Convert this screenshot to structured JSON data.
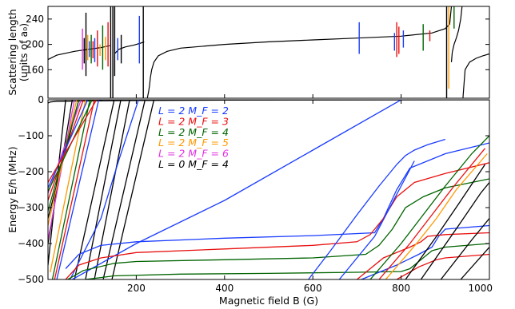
{
  "chart_data": [
    {
      "id": "top",
      "type": "line",
      "ylabel_line1": "Scattering length",
      "ylabel_line2": "(units of a₀)",
      "xlim": [
        0,
        1000
      ],
      "ylim": [
        115,
        260
      ],
      "yticks": [
        160,
        200,
        240
      ],
      "ytick_labels": [
        "160",
        "200",
        "240"
      ],
      "grid": false,
      "background_curve": {
        "color": "#000000",
        "branches": [
          {
            "x": [
              0,
              20,
              60,
              90,
              120,
              140
            ],
            "y": [
              176,
              183,
              189,
              192,
              195,
              198
            ]
          },
          {
            "x": [
              152,
              160,
              175,
              195,
              210,
              218
            ],
            "y": [
              186,
              192,
              196,
              199,
              202,
              204
            ]
          },
          {
            "x": [
              225,
              228,
              230,
              232,
              235,
              240,
              250,
              270,
              300,
              400,
              500,
              600,
              700,
              800,
              870,
              900,
              910,
              912,
              914
            ],
            "y": [
              115,
              126,
              135,
              148,
              160,
              172,
              182,
              189,
              194,
              200,
              204,
              207,
              210,
              213,
              218,
              225,
              232,
              246,
              260
            ]
          },
          {
            "x": [
              914,
              916,
              920,
              925,
              930,
              935,
              938
            ],
            "y": [
              172,
              188,
              200,
              210,
              222,
              240,
              260
            ]
          },
          {
            "x": [
              940,
              945,
              955,
              970,
              985,
              1000
            ],
            "y": [
              115,
              160,
              172,
              178,
              182,
              185
            ]
          }
        ]
      },
      "resonances": [
        {
          "x": 78,
          "y1": 160,
          "y2": 225,
          "color": "#e033e0"
        },
        {
          "x": 82,
          "y1": 170,
          "y2": 210,
          "color": "#000000"
        },
        {
          "x": 86,
          "y1": 150,
          "y2": 250,
          "color": "#000000"
        },
        {
          "x": 90,
          "y1": 175,
          "y2": 215,
          "color": "#ff9900"
        },
        {
          "x": 94,
          "y1": 180,
          "y2": 205,
          "color": "#1a3cff"
        },
        {
          "x": 98,
          "y1": 170,
          "y2": 215,
          "color": "#006400"
        },
        {
          "x": 102,
          "y1": 178,
          "y2": 205,
          "color": "#e81010"
        },
        {
          "x": 106,
          "y1": 172,
          "y2": 210,
          "color": "#1a3cff"
        },
        {
          "x": 112,
          "y1": 165,
          "y2": 222,
          "color": "#e81010"
        },
        {
          "x": 118,
          "y1": 182,
          "y2": 200,
          "color": "#ff9900"
        },
        {
          "x": 124,
          "y1": 160,
          "y2": 230,
          "color": "#006400"
        },
        {
          "x": 130,
          "y1": 175,
          "y2": 212,
          "color": "#ff9900"
        },
        {
          "x": 136,
          "y1": 165,
          "y2": 235,
          "color": "#e81010"
        },
        {
          "x": 142,
          "y1": 115,
          "y2": 260,
          "color": "#000000"
        },
        {
          "x": 147,
          "y1": 115,
          "y2": 260,
          "color": "#000000"
        },
        {
          "x": 151,
          "y1": 150,
          "y2": 260,
          "color": "#000000"
        },
        {
          "x": 158,
          "y1": 175,
          "y2": 210,
          "color": "#1a3cff"
        },
        {
          "x": 166,
          "y1": 170,
          "y2": 215,
          "color": "#000000"
        },
        {
          "x": 207,
          "y1": 170,
          "y2": 245,
          "color": "#1a3cff"
        },
        {
          "x": 216,
          "y1": 115,
          "y2": 260,
          "color": "#000000"
        },
        {
          "x": 705,
          "y1": 185,
          "y2": 235,
          "color": "#1a3cff"
        },
        {
          "x": 785,
          "y1": 190,
          "y2": 218,
          "color": "#1a3cff"
        },
        {
          "x": 790,
          "y1": 180,
          "y2": 235,
          "color": "#e81010"
        },
        {
          "x": 795,
          "y1": 185,
          "y2": 228,
          "color": "#e81010"
        },
        {
          "x": 805,
          "y1": 195,
          "y2": 222,
          "color": "#1a3cff"
        },
        {
          "x": 850,
          "y1": 190,
          "y2": 232,
          "color": "#006400"
        },
        {
          "x": 865,
          "y1": 205,
          "y2": 222,
          "color": "#e81010"
        },
        {
          "x": 903,
          "y1": 115,
          "y2": 260,
          "color": "#000000"
        },
        {
          "x": 908,
          "y1": 130,
          "y2": 260,
          "color": "#ff9900"
        },
        {
          "x": 920,
          "y1": 225,
          "y2": 260,
          "color": "#006400"
        }
      ]
    },
    {
      "id": "bottom",
      "type": "line",
      "xlabel": "Magnetic field B (G)",
      "ylabel": "Energy E/h (MHz)",
      "xlim": [
        0,
        1000
      ],
      "ylim": [
        -500,
        0
      ],
      "xticks": [
        200,
        400,
        600,
        800,
        1000
      ],
      "xtick_labels": [
        "200",
        "400",
        "600",
        "800",
        "1000"
      ],
      "yticks": [
        -500,
        -400,
        -300,
        -200,
        -100,
        0
      ],
      "ytick_labels": [
        "−500",
        "−400",
        "−300",
        "−200",
        "−100",
        "0"
      ],
      "grid": false,
      "legend": {
        "placement": "upper-center",
        "entries": [
          {
            "label": "L = 2 M_F = 2",
            "color": "#1a3cff"
          },
          {
            "label": "L = 2 M_F = 3",
            "color": "#e81010"
          },
          {
            "label": "L = 2 M_F = 4",
            "color": "#006400"
          },
          {
            "label": "L = 2 M_F = 5",
            "color": "#ff9900"
          },
          {
            "label": "L = 2 M_F = 6",
            "color": "#e033e0"
          },
          {
            "label": "L = 0 M_F = 4",
            "color": "#000000"
          }
        ]
      },
      "series": [
        {
          "color": "#000000",
          "x": [
            0,
            5,
            20,
            100,
            200,
            400,
            600,
            800,
            1000
          ],
          "y": [
            -9,
            -6,
            -4,
            -3,
            -2,
            -1,
            -0.5,
            -0.2,
            0
          ]
        },
        {
          "color": "#000000",
          "x": [
            0,
            40
          ],
          "y": [
            -460,
            0
          ]
        },
        {
          "color": "#000000",
          "x": [
            0,
            55
          ],
          "y": [
            -400,
            0
          ]
        },
        {
          "color": "#000000",
          "x": [
            0,
            70
          ],
          "y": [
            -330,
            0
          ]
        },
        {
          "color": "#e033e0",
          "x": [
            0,
            60
          ],
          "y": [
            -390,
            0
          ]
        },
        {
          "color": "#e033e0",
          "x": [
            0,
            75
          ],
          "y": [
            -260,
            0
          ]
        },
        {
          "color": "#ff9900",
          "x": [
            0,
            65
          ],
          "y": [
            -350,
            0
          ]
        },
        {
          "color": "#ff9900",
          "x": [
            5,
            85
          ],
          "y": [
            -480,
            0
          ]
        },
        {
          "color": "#006400",
          "x": [
            0,
            70
          ],
          "y": [
            -310,
            0
          ]
        },
        {
          "color": "#006400",
          "x": [
            10,
            95
          ],
          "y": [
            -500,
            0
          ]
        },
        {
          "color": "#e81010",
          "x": [
            0,
            80
          ],
          "y": [
            -280,
            0
          ]
        },
        {
          "color": "#e81010",
          "x": [
            15,
            105
          ],
          "y": [
            -500,
            0
          ]
        },
        {
          "color": "#1a3cff",
          "x": [
            0,
            90
          ],
          "y": [
            -245,
            0
          ]
        },
        {
          "color": "#1a3cff",
          "x": [
            20,
            115
          ],
          "y": [
            -500,
            0
          ]
        },
        {
          "color": "#006400",
          "x": [
            0,
            100
          ],
          "y": [
            -255,
            0
          ]
        },
        {
          "color": "#e81010",
          "x": [
            0,
            110
          ],
          "y": [
            -230,
            0
          ]
        },
        {
          "color": "#000000",
          "x": [
            60,
            150
          ],
          "y": [
            -500,
            0
          ]
        },
        {
          "color": "#000000",
          "x": [
            85,
            165
          ],
          "y": [
            -500,
            0
          ]
        },
        {
          "color": "#000000",
          "x": [
            105,
            185
          ],
          "y": [
            -500,
            0
          ]
        },
        {
          "color": "#000000",
          "x": [
            125,
            220
          ],
          "y": [
            -500,
            0
          ]
        },
        {
          "color": "#000000",
          "x": [
            145,
            240
          ],
          "y": [
            -500,
            0
          ]
        },
        {
          "color": "#1a3cff",
          "x": [
            50,
            120,
            160,
            205
          ],
          "y": [
            -500,
            -330,
            -170,
            0
          ]
        },
        {
          "color": "#1a3cff",
          "x": [
            55,
            200,
            400,
            600,
            800
          ],
          "y": [
            -500,
            -400,
            -280,
            -140,
            0
          ]
        },
        {
          "color": "#1a3cff",
          "x": [
            40,
            70,
            120,
            200,
            400,
            600,
            740,
            760,
            790,
            820,
            900,
            1000
          ],
          "y": [
            -470,
            -430,
            -405,
            -395,
            -385,
            -378,
            -370,
            -330,
            -250,
            -190,
            -150,
            -120
          ]
        },
        {
          "color": "#e81010",
          "x": [
            40,
            70,
            120,
            200,
            400,
            600,
            700,
            730,
            760,
            790,
            830,
            900,
            1000
          ],
          "y": [
            -500,
            -460,
            -440,
            -425,
            -415,
            -405,
            -395,
            -375,
            -330,
            -270,
            -230,
            -205,
            -175
          ]
        },
        {
          "color": "#006400",
          "x": [
            45,
            80,
            150,
            200,
            400,
            600,
            720,
            750,
            780,
            810,
            850,
            900,
            1000
          ],
          "y": [
            -500,
            -475,
            -455,
            -450,
            -445,
            -440,
            -430,
            -405,
            -360,
            -300,
            -270,
            -245,
            -220
          ]
        },
        {
          "color": "#006400",
          "x": [
            85,
            150,
            300,
            500,
            700,
            800,
            820,
            845,
            870,
            900,
            1000
          ],
          "y": [
            -500,
            -490,
            -485,
            -483,
            -480,
            -478,
            -470,
            -445,
            -420,
            -410,
            -400
          ]
        },
        {
          "color": "#1a3cff",
          "x": [
            590,
            640,
            700,
            750,
            790,
            810,
            830,
            860,
            900
          ],
          "y": [
            -500,
            -420,
            -320,
            -240,
            -180,
            -155,
            -140,
            -125,
            -110
          ]
        },
        {
          "color": "#1a3cff",
          "x": [
            660,
            740,
            800,
            830
          ],
          "y": [
            -500,
            -380,
            -240,
            -170
          ]
        },
        {
          "color": "#1a3cff",
          "x": [
            710,
            790,
            840,
            870,
            885,
            900,
            1000
          ],
          "y": [
            -500,
            -460,
            -430,
            -410,
            -380,
            -360,
            -350
          ]
        },
        {
          "color": "#e81010",
          "x": [
            700,
            760,
            800,
            820,
            845,
            860,
            900,
            1000
          ],
          "y": [
            -500,
            -440,
            -420,
            -410,
            -395,
            -380,
            -375,
            -370
          ]
        },
        {
          "color": "#006400",
          "x": [
            730,
            800,
            850,
            900,
            960,
            1000
          ],
          "y": [
            -500,
            -400,
            -320,
            -240,
            -150,
            -100
          ]
        },
        {
          "color": "#e81010",
          "x": [
            750,
            820,
            870,
            920,
            990
          ],
          "y": [
            -500,
            -400,
            -320,
            -240,
            -135
          ]
        },
        {
          "color": "#ff9900",
          "x": [
            765,
            835,
            880,
            925,
            995
          ],
          "y": [
            -500,
            -400,
            -330,
            -250,
            -150
          ]
        },
        {
          "color": "#e81010",
          "x": [
            790,
            840,
            880,
            900,
            1000
          ],
          "y": [
            -500,
            -465,
            -445,
            -440,
            -430
          ]
        },
        {
          "color": "#000000",
          "x": [
            810,
            880,
            930,
            990
          ],
          "y": [
            -500,
            -380,
            -290,
            -180
          ]
        },
        {
          "color": "#000000",
          "x": [
            845,
            930,
            980,
            1000
          ],
          "y": [
            -500,
            -350,
            -260,
            -230
          ]
        },
        {
          "color": "#000000",
          "x": [
            890,
            960,
            1000
          ],
          "y": [
            -500,
            -390,
            -330
          ]
        },
        {
          "color": "#000000",
          "x": [
            935,
            1000
          ],
          "y": [
            -500,
            -410
          ]
        }
      ]
    }
  ]
}
